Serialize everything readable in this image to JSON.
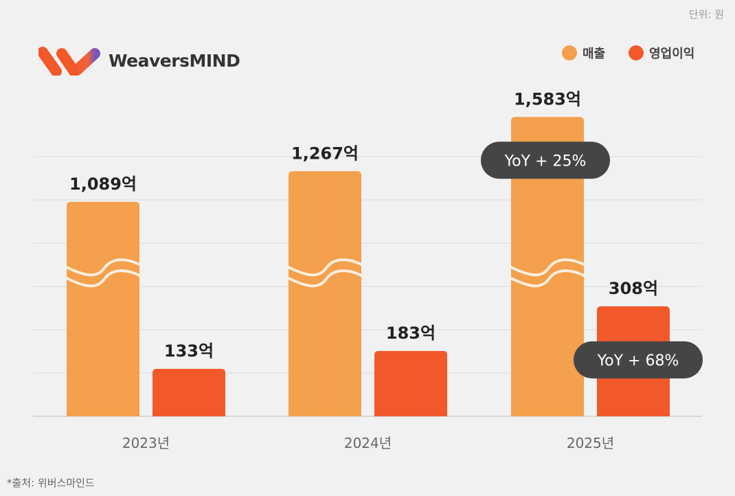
{
  "unit_label": "단위: 원",
  "logo_text": "WeaversMIND",
  "source": "*출처: 위버스마인드",
  "colors": {
    "revenue": "#f4a04c",
    "profit": "#f2592a",
    "pill": "#454545",
    "grid": "#dcdcdc"
  },
  "chart_data": {
    "type": "bar",
    "categories": [
      "2023년",
      "2024년",
      "2025년"
    ],
    "axis_break": true,
    "grid": true,
    "legend_placement": "top-right",
    "series": [
      {
        "name": "매출",
        "values": [
          1089,
          1267,
          1583
        ],
        "labels": [
          "1,089억",
          "1,267억",
          "1,583억"
        ]
      },
      {
        "name": "영업이익",
        "values": [
          133,
          183,
          308
        ],
        "labels": [
          "133억",
          "183억",
          "308억"
        ]
      }
    ],
    "annotations": [
      {
        "series": 0,
        "category": 2,
        "text": "YoY + 25%"
      },
      {
        "series": 1,
        "category": 2,
        "text": "YoY + 68%"
      }
    ]
  }
}
